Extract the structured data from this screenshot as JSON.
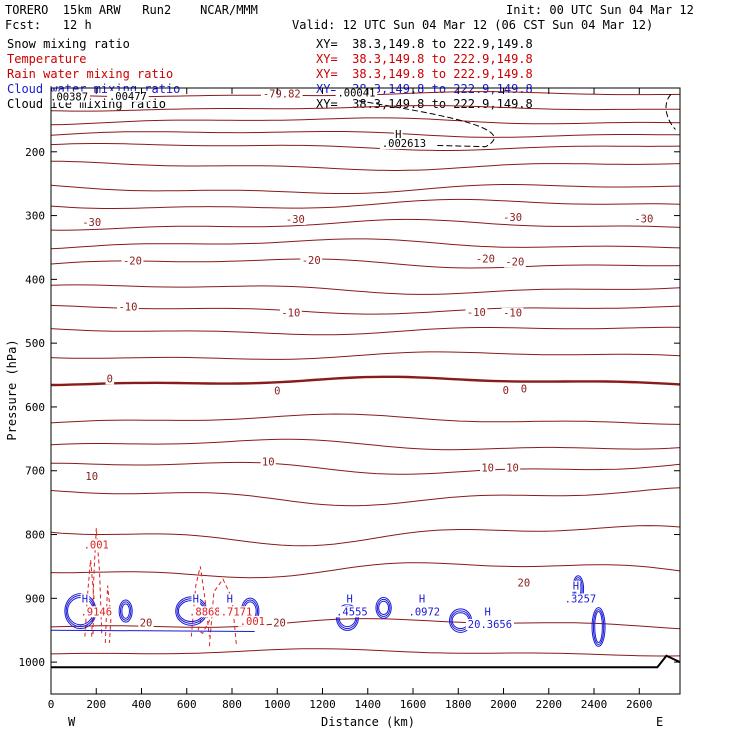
{
  "header": {
    "model": "TORERO  15km ARW   Run2    NCAR/MMM",
    "init": "Init: 00 UTC Sun 04 Mar 12",
    "fcst": "Fcst:   12 h",
    "valid": "Valid: 12 UTC Sun 04 Mar 12 (06 CST Sun 04 Mar 12)",
    "fields": [
      {
        "name": "Snow mixing ratio",
        "range": "XY=  38.3,149.8 to 222.9,149.8",
        "color": "#000000"
      },
      {
        "name": "Temperature",
        "range": "XY=  38.3,149.8 to 222.9,149.8",
        "color": "#cc0000"
      },
      {
        "name": "Rain water mixing ratio",
        "range": "XY=  38.3,149.8 to 222.9,149.8",
        "color": "#cc0000"
      },
      {
        "name": "Cloud water mixing ratio",
        "range": "XY=  38.3,149.8 to 222.9,149.8",
        "color": "#1a1ad6"
      },
      {
        "name": "Cloud ice mixing ratio",
        "range": "XY=  38.3,149.8 to 222.9,149.8",
        "color": "#000000"
      }
    ]
  },
  "colors": {
    "temp": "#8b1a1a",
    "rain": "#e02020",
    "cloud": "#1a1ad6",
    "snow": "#000000"
  },
  "chart_data": {
    "type": "cross-section contour",
    "xlabel": "Distance (km)",
    "ylabel": "Pressure (hPa)",
    "xlim": [
      0,
      2780
    ],
    "ylim": [
      1050,
      100
    ],
    "x_ticks": [
      0,
      200,
      400,
      600,
      800,
      1000,
      1200,
      1400,
      1600,
      1800,
      2000,
      2200,
      2400,
      2600
    ],
    "y_ticks": [
      200,
      300,
      400,
      500,
      600,
      700,
      800,
      900,
      1000
    ],
    "left_end": "W",
    "right_end": "E",
    "temperature_lines": [
      {
        "base": 110,
        "amp": 3
      },
      {
        "base": 132,
        "amp": 3
      },
      {
        "base": 152,
        "amp": 4
      },
      {
        "base": 172,
        "amp": 4
      },
      {
        "base": 192,
        "amp": 4
      },
      {
        "base": 222,
        "amp": 5
      },
      {
        "base": 258,
        "amp": 6
      },
      {
        "base": 283,
        "amp": 6
      },
      {
        "base": 315,
        "amp": 6
      },
      {
        "base": 345,
        "amp": 6
      },
      {
        "base": 375,
        "amp": 6
      },
      {
        "base": 415,
        "amp": 6
      },
      {
        "base": 447,
        "amp": 5
      },
      {
        "base": 480,
        "amp": 5
      },
      {
        "base": 520,
        "amp": 5
      },
      {
        "base": 560,
        "amp": 5,
        "thick": true
      },
      {
        "base": 620,
        "amp": 6
      },
      {
        "base": 660,
        "amp": 7
      },
      {
        "base": 695,
        "amp": 8
      },
      {
        "base": 740,
        "amp": 10
      },
      {
        "base": 800,
        "amp": 12
      },
      {
        "base": 855,
        "amp": 10
      },
      {
        "base": 940,
        "amp": 6
      },
      {
        "base": 985,
        "amp": 4
      }
    ],
    "temperature_labels": [
      {
        "text": "-79.82",
        "x": 1020,
        "p": 113
      },
      {
        "text": "-30",
        "x": 180,
        "p": 315
      },
      {
        "text": "-30",
        "x": 1080,
        "p": 310
      },
      {
        "text": "-30",
        "x": 2040,
        "p": 307
      },
      {
        "text": "-30",
        "x": 2620,
        "p": 309
      },
      {
        "text": "-20",
        "x": 360,
        "p": 375
      },
      {
        "text": "-20",
        "x": 1150,
        "p": 374
      },
      {
        "text": "-20",
        "x": 1920,
        "p": 372
      },
      {
        "text": "-20",
        "x": 2050,
        "p": 377
      },
      {
        "text": "-10",
        "x": 340,
        "p": 447
      },
      {
        "text": "-10",
        "x": 1060,
        "p": 457
      },
      {
        "text": "-10",
        "x": 1880,
        "p": 456
      },
      {
        "text": "-10",
        "x": 2040,
        "p": 457
      },
      {
        "text": "0",
        "x": 260,
        "p": 560
      },
      {
        "text": "0",
        "x": 1000,
        "p": 579
      },
      {
        "text": "0",
        "x": 2010,
        "p": 578
      },
      {
        "text": "0",
        "x": 2090,
        "p": 576
      },
      {
        "text": "10",
        "x": 180,
        "p": 713
      },
      {
        "text": "10",
        "x": 960,
        "p": 690
      },
      {
        "text": "10",
        "x": 1930,
        "p": 700
      },
      {
        "text": "10",
        "x": 2040,
        "p": 700
      },
      {
        "text": "20",
        "x": 420,
        "p": 943
      },
      {
        "text": "20",
        "x": 1010,
        "p": 943
      },
      {
        "text": "20",
        "x": 2090,
        "p": 880
      }
    ],
    "snow_labels": [
      {
        "text": ".00387",
        "x": 80,
        "p": 118
      },
      {
        "text": ".00477",
        "x": 340,
        "p": 117
      },
      {
        "text": ".00041",
        "x": 1350,
        "p": 112
      },
      {
        "text": "H",
        "x": 1535,
        "p": 177
      },
      {
        "text": ".002613",
        "x": 1560,
        "p": 191
      }
    ],
    "rain_labels": [
      {
        "text": ".001",
        "x": 200,
        "p": 820
      },
      {
        "text": ".9146",
        "x": 200,
        "p": 925
      },
      {
        "text": ".8868",
        "x": 680,
        "p": 925
      },
      {
        "text": ".7171",
        "x": 820,
        "p": 925
      },
      {
        "text": ".001",
        "x": 890,
        "p": 940
      }
    ],
    "cloud_labels": [
      {
        "text": "H",
        "x": 150,
        "p": 905
      },
      {
        "text": "H",
        "x": 640,
        "p": 905
      },
      {
        "text": "H",
        "x": 790,
        "p": 905
      },
      {
        "text": "H",
        "x": 1320,
        "p": 905
      },
      {
        "text": ".4555",
        "x": 1330,
        "p": 925
      },
      {
        "text": "H",
        "x": 1640,
        "p": 905
      },
      {
        "text": ".0972",
        "x": 1650,
        "p": 925
      },
      {
        "text": "H",
        "x": 1930,
        "p": 925
      },
      {
        "text": "20.3656",
        "x": 1940,
        "p": 945
      },
      {
        "text": "H",
        "x": 2320,
        "p": 885
      },
      {
        "text": ".3257",
        "x": 2340,
        "p": 905
      }
    ]
  }
}
